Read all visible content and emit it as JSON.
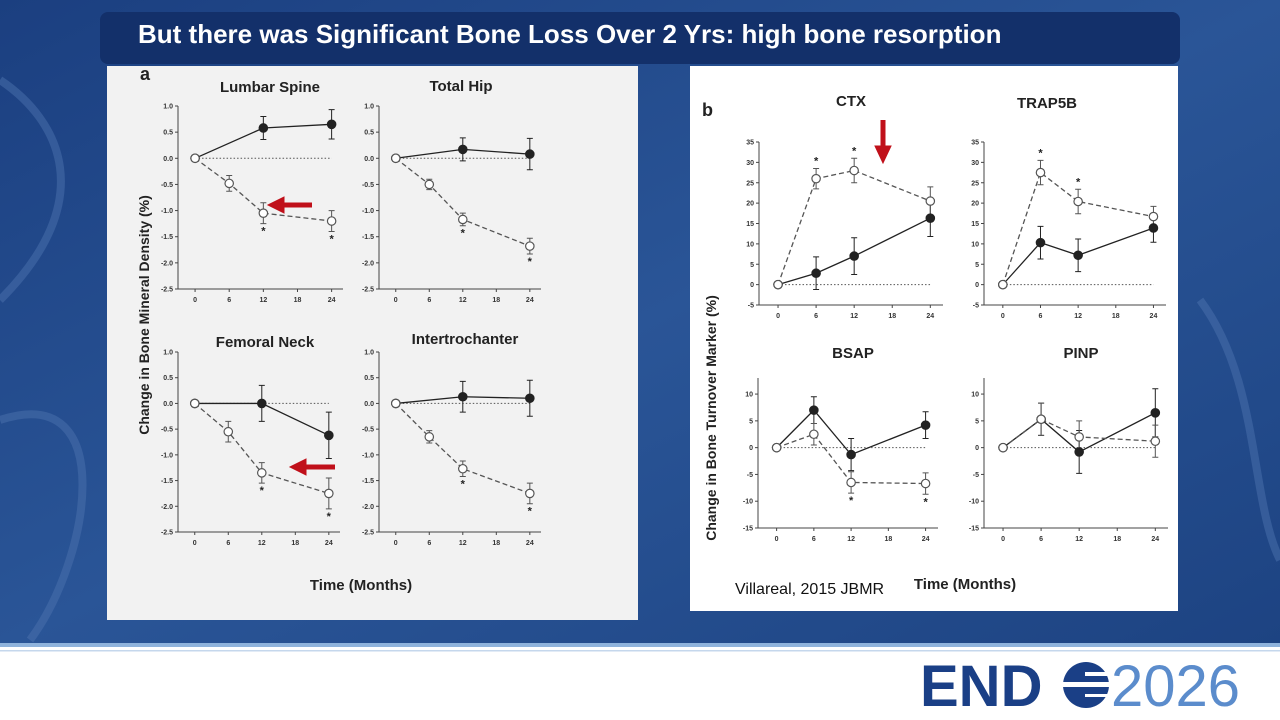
{
  "slide": {
    "title": "But there was Significant Bone Loss Over 2 Yrs: high bone resorption",
    "citation": "Villareal, 2015 JBMR"
  },
  "logo": {
    "left": "END",
    "right": "2026"
  },
  "panels": [
    {
      "label": "a",
      "ylabel": "Change in Bone Mineral Density (%)",
      "xlabel": "Time (Months)"
    },
    {
      "label": "b",
      "ylabel": "Change in Bone Turnover Marker (%)",
      "xlabel": "Time (Months)"
    }
  ],
  "chart_data": [
    {
      "type": "line",
      "title": "Lumbar Spine",
      "xlim": [
        -3,
        26
      ],
      "xticks": [
        0,
        6,
        12,
        18,
        24
      ],
      "ylim": [
        -2.5,
        1
      ],
      "yticks": [
        {
          "value": 1,
          "label": "1.0"
        },
        0.5,
        {
          "value": 0,
          "label": "0.0"
        },
        -0.5,
        {
          "value": -1,
          "label": "-1.0"
        },
        -1.5,
        {
          "value": -2,
          "label": "-2.0"
        },
        -2.5
      ],
      "series": [
        {
          "color": "#222222",
          "marker": "filled",
          "x": [
            0,
            12,
            24
          ],
          "values": [
            0,
            0.58,
            0.65
          ],
          "errors": [
            0,
            0.22,
            0.28
          ]
        },
        {
          "color": "#555555",
          "marker": "open",
          "dashed": true,
          "x": [
            0,
            6,
            12,
            24
          ],
          "values": [
            0,
            -0.48,
            -1.05,
            -1.2
          ],
          "errors": [
            0,
            0.15,
            0.2,
            0.2
          ]
        }
      ],
      "annotations": [
        {
          "x": 12,
          "text": "*",
          "position": "below"
        },
        {
          "x": 24,
          "text": "*",
          "position": "below"
        }
      ]
    },
    {
      "type": "line",
      "title": "Total Hip",
      "xlim": [
        -3,
        26
      ],
      "xticks": [
        0,
        6,
        12,
        18,
        24
      ],
      "ylim": [
        -2.5,
        1
      ],
      "yticks": [
        {
          "value": 1,
          "label": "1.0"
        },
        0.5,
        {
          "value": 0,
          "label": "0.0"
        },
        -0.5,
        {
          "value": -1,
          "label": "-1.0"
        },
        -1.5,
        {
          "value": -2,
          "label": "-2.0"
        },
        -2.5
      ],
      "series": [
        {
          "color": "#222222",
          "marker": "filled",
          "x": [
            0,
            12,
            24
          ],
          "values": [
            0,
            0.17,
            0.08
          ],
          "errors": [
            0,
            0.22,
            0.3
          ]
        },
        {
          "color": "#555555",
          "marker": "open",
          "dashed": true,
          "x": [
            0,
            6,
            12,
            24
          ],
          "values": [
            0,
            -0.5,
            -1.17,
            -1.68
          ],
          "errors": [
            0,
            0.1,
            0.12,
            0.15
          ]
        }
      ],
      "annotations": [
        {
          "x": 12,
          "text": "*",
          "position": "below"
        },
        {
          "x": 24,
          "text": "*",
          "position": "below"
        }
      ]
    },
    {
      "type": "line",
      "title": "Femoral Neck",
      "xlim": [
        -3,
        26
      ],
      "xticks": [
        0,
        6,
        12,
        18,
        24
      ],
      "ylim": [
        -2.5,
        1
      ],
      "yticks": [
        {
          "value": 1,
          "label": "1.0"
        },
        0.5,
        {
          "value": 0,
          "label": "0.0"
        },
        -0.5,
        {
          "value": -1,
          "label": "-1.0"
        },
        -1.5,
        {
          "value": -2,
          "label": "-2.0"
        },
        -2.5
      ],
      "series": [
        {
          "color": "#222222",
          "marker": "filled",
          "x": [
            0,
            12,
            24
          ],
          "values": [
            0,
            0,
            -0.62
          ],
          "errors": [
            0,
            0.35,
            0.45
          ]
        },
        {
          "color": "#555555",
          "marker": "open",
          "dashed": true,
          "x": [
            0,
            6,
            12,
            24
          ],
          "values": [
            0,
            -0.55,
            -1.35,
            -1.75
          ],
          "errors": [
            0,
            0.2,
            0.2,
            0.3
          ]
        }
      ],
      "annotations": [
        {
          "x": 12,
          "text": "*",
          "position": "below"
        },
        {
          "x": 24,
          "text": "*",
          "position": "below"
        }
      ]
    },
    {
      "type": "line",
      "title": "Intertrochanter",
      "xlim": [
        -3,
        26
      ],
      "xticks": [
        0,
        6,
        12,
        18,
        24
      ],
      "ylim": [
        -2.5,
        1
      ],
      "yticks": [
        {
          "value": 1,
          "label": "1.0"
        },
        0.5,
        {
          "value": 0,
          "label": "0.0"
        },
        -0.5,
        {
          "value": -1,
          "label": "-1.0"
        },
        -1.5,
        {
          "value": -2,
          "label": "-2.0"
        },
        -2.5
      ],
      "series": [
        {
          "color": "#222222",
          "marker": "filled",
          "x": [
            0,
            12,
            24
          ],
          "values": [
            0,
            0.13,
            0.1
          ],
          "errors": [
            0,
            0.3,
            0.35
          ]
        },
        {
          "color": "#555555",
          "marker": "open",
          "dashed": true,
          "x": [
            0,
            6,
            12,
            24
          ],
          "values": [
            0,
            -0.65,
            -1.27,
            -1.75
          ],
          "errors": [
            0,
            0.12,
            0.15,
            0.2
          ]
        }
      ],
      "annotations": [
        {
          "x": 12,
          "text": "*",
          "position": "below"
        },
        {
          "x": 24,
          "text": "*",
          "position": "below"
        }
      ]
    },
    {
      "type": "line",
      "title": "CTX",
      "xlim": [
        -3,
        26
      ],
      "xticks": [
        0,
        6,
        12,
        18,
        24
      ],
      "ylim": [
        -5,
        35
      ],
      "yticks": [
        35,
        30,
        25,
        20,
        15,
        10,
        5,
        0,
        -5
      ],
      "series": [
        {
          "color": "#222222",
          "marker": "filled",
          "x": [
            0,
            6,
            12,
            24
          ],
          "values": [
            0,
            2.8,
            7,
            16.3
          ],
          "errors": [
            0,
            4,
            4.5,
            4.5
          ]
        },
        {
          "color": "#555555",
          "marker": "open",
          "dashed": true,
          "x": [
            0,
            6,
            12,
            24
          ],
          "values": [
            0,
            26,
            28,
            20.5
          ],
          "errors": [
            0,
            2.5,
            3,
            3.5
          ]
        }
      ],
      "annotations": [
        {
          "x": 6,
          "text": "*",
          "position": "above"
        },
        {
          "x": 12,
          "text": "*",
          "position": "above"
        }
      ]
    },
    {
      "type": "line",
      "title": "TRAP5B",
      "xlim": [
        -3,
        26
      ],
      "xticks": [
        0,
        6,
        12,
        18,
        24
      ],
      "ylim": [
        -5,
        35
      ],
      "yticks": [
        35,
        30,
        25,
        20,
        15,
        10,
        5,
        0,
        -5
      ],
      "series": [
        {
          "color": "#222222",
          "marker": "filled",
          "x": [
            0,
            6,
            12,
            24
          ],
          "values": [
            0,
            10.3,
            7.2,
            13.9
          ],
          "errors": [
            0,
            4,
            4,
            3.5
          ]
        },
        {
          "color": "#555555",
          "marker": "open",
          "dashed": true,
          "x": [
            0,
            6,
            12,
            24
          ],
          "values": [
            0,
            27.5,
            20.4,
            16.7
          ],
          "errors": [
            0,
            3,
            3,
            2.5
          ]
        }
      ],
      "annotations": [
        {
          "x": 6,
          "text": "*",
          "position": "above"
        },
        {
          "x": 12,
          "text": "*",
          "position": "above"
        }
      ]
    },
    {
      "type": "line",
      "title": "BSAP",
      "xlim": [
        -3,
        26
      ],
      "xticks": [
        0,
        6,
        12,
        18,
        24
      ],
      "ylim": [
        -15,
        13
      ],
      "yticks": [
        10,
        5,
        0,
        -5,
        -10,
        -15
      ],
      "series": [
        {
          "color": "#222222",
          "marker": "filled",
          "x": [
            0,
            6,
            12,
            24
          ],
          "values": [
            0,
            7,
            -1.3,
            4.2
          ],
          "errors": [
            0,
            2.5,
            3,
            2.5
          ]
        },
        {
          "color": "#555555",
          "marker": "open",
          "dashed": true,
          "x": [
            0,
            6,
            12,
            24
          ],
          "values": [
            0,
            2.5,
            -6.5,
            -6.7
          ],
          "errors": [
            0,
            2,
            2,
            2
          ]
        }
      ],
      "annotations": [
        {
          "x": 12,
          "text": "*",
          "position": "below"
        },
        {
          "x": 24,
          "text": "*",
          "position": "below"
        }
      ]
    },
    {
      "type": "line",
      "title": "PINP",
      "xlim": [
        -3,
        26
      ],
      "xticks": [
        0,
        6,
        12,
        18,
        24
      ],
      "ylim": [
        -15,
        13
      ],
      "yticks": [
        10,
        5,
        0,
        -5,
        -10,
        -15
      ],
      "series": [
        {
          "color": "#222222",
          "marker": "filled",
          "x": [
            0,
            6,
            12,
            24
          ],
          "values": [
            0,
            5.3,
            -0.8,
            6.5
          ],
          "errors": [
            0,
            3,
            4,
            4.5
          ]
        },
        {
          "color": "#555555",
          "marker": "open",
          "dashed": true,
          "x": [
            0,
            6,
            12,
            24
          ],
          "values": [
            0,
            5.3,
            2,
            1.2
          ],
          "errors": [
            0,
            3,
            3,
            3
          ]
        }
      ],
      "annotations": []
    }
  ]
}
